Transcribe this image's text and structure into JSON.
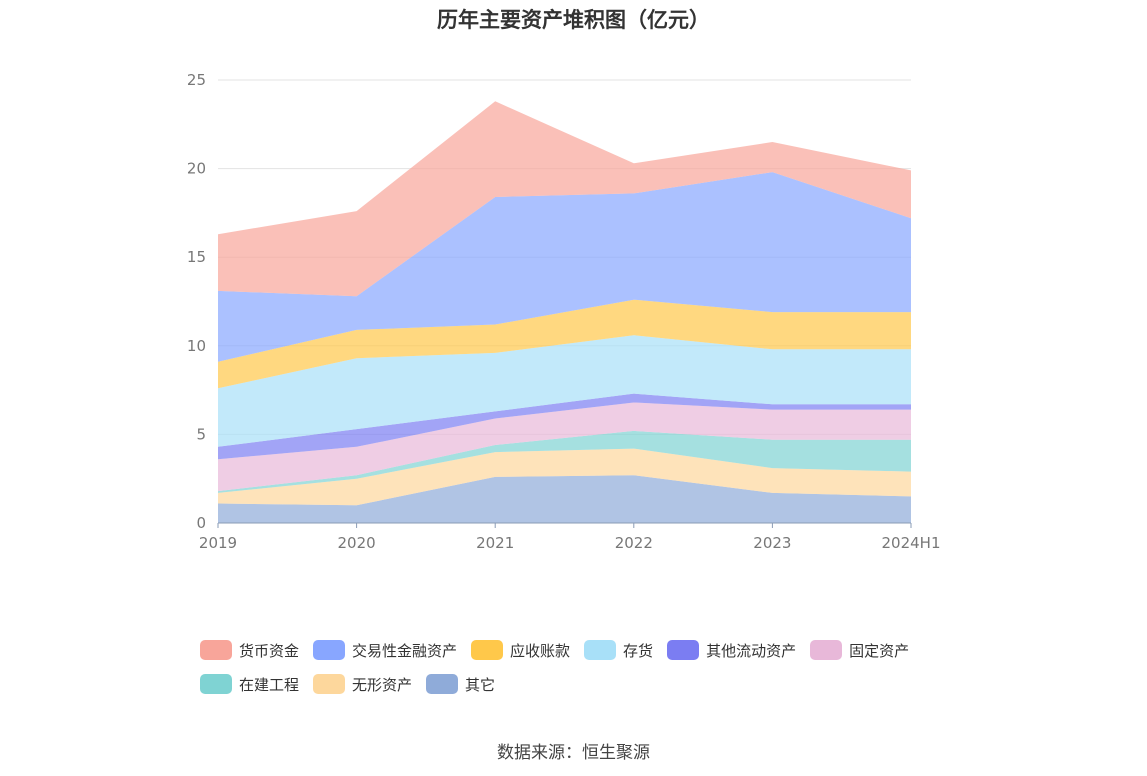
{
  "source": "数据来源：恒生聚源",
  "chart_data": {
    "type": "area",
    "stacked": true,
    "title": "历年主要资产堆积图（亿元）",
    "categories": [
      "2019",
      "2020",
      "2021",
      "2022",
      "2023",
      "2024H1"
    ],
    "ylim": [
      0,
      25
    ],
    "yticks": [
      0,
      5,
      10,
      15,
      20,
      25
    ],
    "grid": true,
    "legend_position": "bottom",
    "series": [
      {
        "name": "其它",
        "color": "#8fabd9",
        "values": [
          1.1,
          1.0,
          2.6,
          2.7,
          1.7,
          1.5
        ]
      },
      {
        "name": "无形资产",
        "color": "#fdd79c",
        "values": [
          0.6,
          1.5,
          1.4,
          1.5,
          1.4,
          1.4
        ]
      },
      {
        "name": "在建工程",
        "color": "#7fd3d3",
        "values": [
          0.1,
          0.2,
          0.4,
          1.0,
          1.6,
          1.8
        ]
      },
      {
        "name": "固定资产",
        "color": "#e8b8d9",
        "values": [
          1.8,
          1.6,
          1.5,
          1.6,
          1.7,
          1.7
        ]
      },
      {
        "name": "其他流动资产",
        "color": "#7b7df2",
        "values": [
          0.7,
          1.0,
          0.4,
          0.5,
          0.3,
          0.3
        ]
      },
      {
        "name": "存货",
        "color": "#a8e0f8",
        "values": [
          3.3,
          4.0,
          3.3,
          3.3,
          3.1,
          3.1
        ]
      },
      {
        "name": "应收账款",
        "color": "#ffc84a",
        "values": [
          1.5,
          1.6,
          1.6,
          2.0,
          2.1,
          2.1
        ]
      },
      {
        "name": "交易性金融资产",
        "color": "#88a6ff",
        "values": [
          4.0,
          1.9,
          7.2,
          6.0,
          7.9,
          5.3
        ]
      },
      {
        "name": "货币资金",
        "color": "#f8a59a",
        "values": [
          3.2,
          4.8,
          5.4,
          1.7,
          1.7,
          2.7
        ]
      }
    ],
    "legend_order": [
      "货币资金",
      "交易性金融资产",
      "应收账款",
      "存货",
      "其他流动资产",
      "固定资产",
      "在建工程",
      "无形资产",
      "其它"
    ]
  }
}
